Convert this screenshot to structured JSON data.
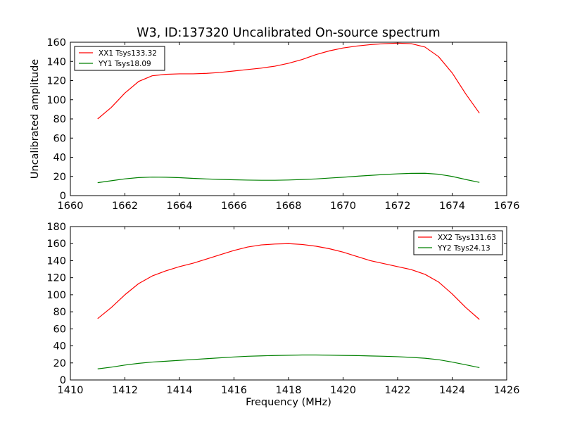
{
  "title": "W3, ID:137320 Uncalibrated On-source spectrum",
  "colors": {
    "xx": "#ff0000",
    "yy": "#008000",
    "axes": "#000000",
    "background": "#ffffff"
  },
  "chart_data": [
    {
      "type": "line",
      "title": "W3, ID:137320 Uncalibrated On-source spectrum",
      "xlabel": "",
      "ylabel": "Uncalibrated amplitude",
      "xlim": [
        1660,
        1676
      ],
      "ylim": [
        0,
        160
      ],
      "xticks": [
        1660,
        1662,
        1664,
        1666,
        1668,
        1670,
        1672,
        1674,
        1676
      ],
      "yticks": [
        0,
        20,
        40,
        60,
        80,
        100,
        120,
        140,
        160
      ],
      "grid": false,
      "legend_position": "upper-left",
      "series": [
        {
          "name": "XX1 Tsys133.32",
          "color": "#ff0000",
          "x": [
            1661.0,
            1661.5,
            1662.0,
            1662.5,
            1663.0,
            1663.5,
            1664.0,
            1664.5,
            1665.0,
            1665.5,
            1666.0,
            1666.5,
            1667.0,
            1667.5,
            1668.0,
            1668.5,
            1669.0,
            1669.5,
            1670.0,
            1670.5,
            1671.0,
            1671.5,
            1672.0,
            1672.5,
            1673.0,
            1673.5,
            1674.0,
            1674.5,
            1675.0
          ],
          "y": [
            80,
            92,
            107,
            119,
            125,
            126.5,
            127,
            127,
            127.5,
            128.5,
            130,
            131.5,
            133,
            135,
            138,
            142,
            147,
            151,
            154,
            156,
            157.5,
            158.5,
            159,
            158.5,
            155,
            145,
            128,
            106,
            86
          ]
        },
        {
          "name": "YY1 Tsys18.09",
          "color": "#008000",
          "x": [
            1661.0,
            1661.5,
            1662.0,
            1662.5,
            1663.0,
            1663.5,
            1664.0,
            1664.5,
            1665.0,
            1665.5,
            1666.0,
            1666.5,
            1667.0,
            1667.5,
            1668.0,
            1668.5,
            1669.0,
            1669.5,
            1670.0,
            1670.5,
            1671.0,
            1671.5,
            1672.0,
            1672.5,
            1673.0,
            1673.5,
            1674.0,
            1674.5,
            1675.0
          ],
          "y": [
            13.5,
            15.5,
            17.5,
            18.8,
            19.3,
            19.2,
            18.7,
            18,
            17.4,
            16.9,
            16.5,
            16.2,
            16,
            16,
            16.3,
            16.8,
            17.4,
            18.3,
            19.2,
            20.2,
            21.1,
            22,
            22.7,
            23.2,
            23.3,
            22.3,
            20,
            16.8,
            13.8
          ]
        }
      ]
    },
    {
      "type": "line",
      "title": "",
      "xlabel": "Frequency (MHz)",
      "ylabel": "",
      "xlim": [
        1410,
        1426
      ],
      "ylim": [
        0,
        180
      ],
      "xticks": [
        1410,
        1412,
        1414,
        1416,
        1418,
        1420,
        1422,
        1424,
        1426
      ],
      "yticks": [
        0,
        20,
        40,
        60,
        80,
        100,
        120,
        140,
        160,
        180
      ],
      "grid": false,
      "legend_position": "upper-right",
      "series": [
        {
          "name": "XX2 Tsys131.63",
          "color": "#ff0000",
          "x": [
            1411.0,
            1411.5,
            1412.0,
            1412.5,
            1413.0,
            1413.5,
            1414.0,
            1414.5,
            1415.0,
            1415.5,
            1416.0,
            1416.5,
            1417.0,
            1417.5,
            1418.0,
            1418.5,
            1419.0,
            1419.5,
            1420.0,
            1420.5,
            1421.0,
            1421.5,
            1422.0,
            1422.5,
            1423.0,
            1423.5,
            1424.0,
            1424.5,
            1425.0
          ],
          "y": [
            72,
            85,
            100,
            113,
            122,
            128,
            133,
            137,
            142,
            147,
            152,
            156,
            158.5,
            159.5,
            160,
            159,
            157,
            154,
            150,
            145,
            140,
            136.5,
            133,
            129.5,
            124,
            115,
            101,
            85,
            71
          ]
        },
        {
          "name": "YY2 Tsys24.13",
          "color": "#008000",
          "x": [
            1411.0,
            1411.5,
            1412.0,
            1412.5,
            1413.0,
            1413.5,
            1414.0,
            1414.5,
            1415.0,
            1415.5,
            1416.0,
            1416.5,
            1417.0,
            1417.5,
            1418.0,
            1418.5,
            1419.0,
            1419.5,
            1420.0,
            1420.5,
            1421.0,
            1421.5,
            1422.0,
            1422.5,
            1423.0,
            1423.5,
            1424.0,
            1424.5,
            1425.0
          ],
          "y": [
            13,
            15,
            17.5,
            19.5,
            21,
            22,
            23,
            24,
            25,
            26,
            27,
            27.8,
            28.3,
            28.7,
            29,
            29.3,
            29.3,
            29.1,
            28.8,
            28.6,
            28.2,
            27.8,
            27.3,
            26.5,
            25.5,
            23.8,
            21,
            17.8,
            14.5
          ]
        }
      ]
    }
  ]
}
